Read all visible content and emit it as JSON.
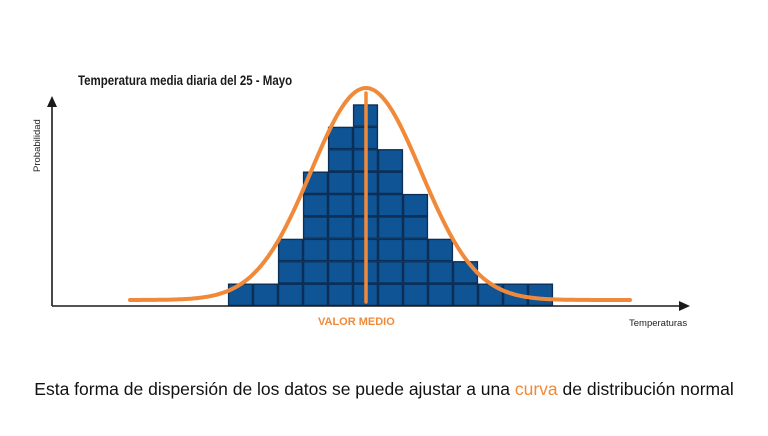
{
  "chart_data": {
    "type": "bar",
    "title": "Temperatura media diaria del 25 - Mayo",
    "xlabel": "Temperaturas",
    "ylabel": "Probabilidad",
    "values": [
      1,
      1,
      3,
      6,
      8,
      9,
      7,
      5,
      3,
      2,
      1,
      1,
      1
    ],
    "ylim": [
      0,
      9
    ],
    "grid": false,
    "legend": "none",
    "overlay_curve": "normal",
    "annotations": [
      {
        "label": "VALOR MEDIO"
      }
    ]
  },
  "caption": {
    "before": "Esta forma de dispersión de los datos se puede ajustar a una ",
    "highlight": "curva",
    "after": " de distribución normal"
  },
  "colors": {
    "bar": "#0f5596",
    "bar_border": "#0b2f57",
    "curve": "#f08a3a",
    "axis": "#1a1a1a",
    "mean_label": "#f08a3a"
  }
}
